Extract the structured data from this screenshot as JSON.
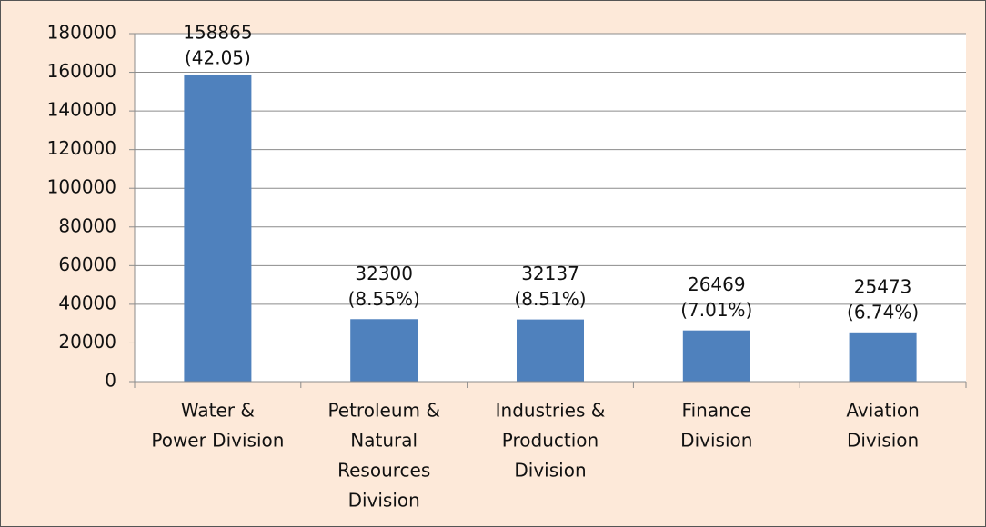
{
  "chart_data": {
    "type": "bar",
    "categories": [
      [
        "Water &",
        "Power Division"
      ],
      [
        "Petroleum &",
        "Natural",
        "Resources",
        "Division"
      ],
      [
        "Industries &",
        "Production",
        "Division"
      ],
      [
        "Finance",
        "Division"
      ],
      [
        "Aviation",
        "Division"
      ]
    ],
    "values": [
      158865,
      32300,
      32137,
      26469,
      25473
    ],
    "value_labels": [
      [
        "158865",
        "(42.05)"
      ],
      [
        "32300",
        "(8.55%)"
      ],
      [
        "32137",
        "(8.51%)"
      ],
      [
        "26469",
        "(7.01%)"
      ],
      [
        "25473",
        "(6.74%)"
      ]
    ],
    "color": "#4f81bd",
    "ylim": [
      0,
      180000
    ],
    "yticks": [
      0,
      20000,
      40000,
      60000,
      80000,
      100000,
      120000,
      140000,
      160000,
      180000
    ],
    "grid": true
  }
}
